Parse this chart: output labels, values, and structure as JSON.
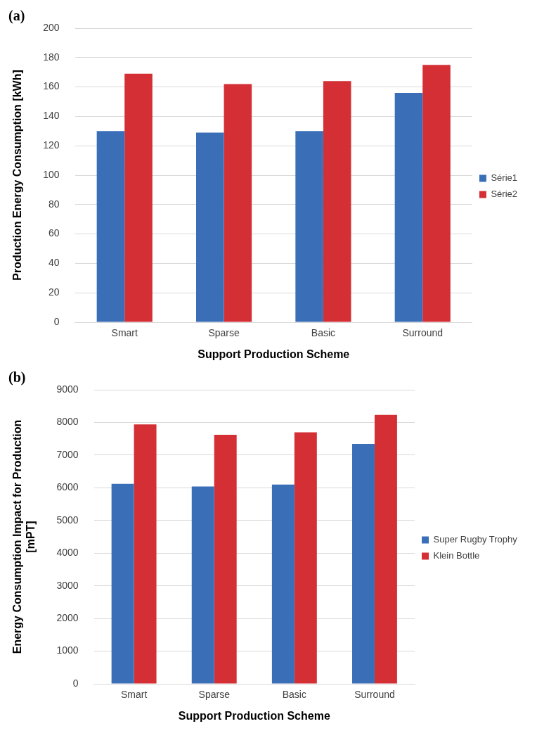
{
  "chart_data": [
    {
      "type": "bar",
      "title": "(a)",
      "xlabel": "Support Production Scheme",
      "ylabel": "Production Energy Consumption [kWh]",
      "categories": [
        "Smart",
        "Sparse",
        "Basic",
        "Surround"
      ],
      "series": [
        {
          "name": "Série1",
          "color": "#3a6fb8",
          "values": [
            130,
            129,
            130,
            156
          ]
        },
        {
          "name": "Série2",
          "color": "#d42f35",
          "values": [
            169,
            162,
            164,
            175
          ]
        }
      ],
      "ylim": [
        0,
        200
      ],
      "yticks": [
        0,
        20,
        40,
        60,
        80,
        100,
        120,
        140,
        160,
        180,
        200
      ],
      "grid": "y",
      "legend": "right"
    },
    {
      "type": "bar",
      "title": "(b)",
      "xlabel": "Support Production Scheme",
      "ylabel": "Energy Consumption Impact for Production [mPT]",
      "categories": [
        "Smart",
        "Sparse",
        "Basic",
        "Surround"
      ],
      "series": [
        {
          "name": "Super Rugby Trophy",
          "color": "#3a6fb8",
          "values": [
            6120,
            6040,
            6100,
            7340
          ]
        },
        {
          "name": "Klein Bottle",
          "color": "#d42f35",
          "values": [
            7940,
            7620,
            7700,
            8230
          ]
        }
      ],
      "ylim": [
        0,
        9000
      ],
      "yticks": [
        0,
        1000,
        2000,
        3000,
        4000,
        5000,
        6000,
        7000,
        8000,
        9000
      ],
      "grid": "y",
      "legend": "right"
    }
  ]
}
